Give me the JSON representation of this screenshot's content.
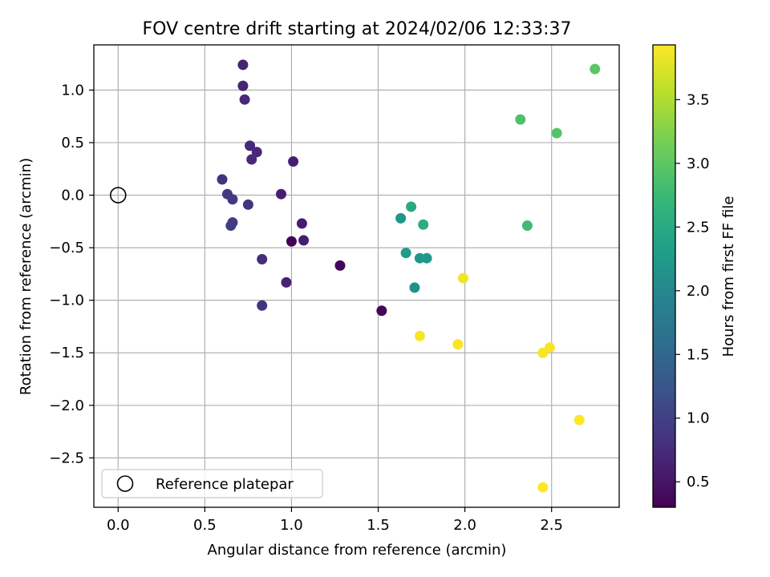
{
  "chart_data": {
    "type": "scatter",
    "title": "FOV centre drift starting at 2024/02/06 12:33:37",
    "xlabel": "Angular distance from reference (arcmin)",
    "ylabel": "Rotation from reference (arcmin)",
    "xlim": [
      -0.14,
      2.89
    ],
    "ylim": [
      -2.97,
      1.43
    ],
    "xticks": [
      "0.0",
      "0.5",
      "1.0",
      "1.5",
      "2.0",
      "2.5"
    ],
    "xtick_values": [
      0.0,
      0.5,
      1.0,
      1.5,
      2.0,
      2.5
    ],
    "yticks": [
      "1.0",
      "0.5",
      "0.0",
      "−0.5",
      "−1.0",
      "−1.5",
      "−2.0",
      "−2.5"
    ],
    "ytick_values": [
      1.0,
      0.5,
      0.0,
      -0.5,
      -1.0,
      -1.5,
      -2.0,
      -2.5
    ],
    "grid": true,
    "legend": {
      "position": "lower-left",
      "label": "Reference platepar"
    },
    "reference_point": {
      "x": 0.0,
      "y": 0.0
    },
    "colorbar": {
      "label": "Hours from first FF file",
      "colormap": "viridis",
      "range": [
        0.3,
        3.93
      ],
      "ticks": [
        "0.5",
        "1.0",
        "1.5",
        "2.0",
        "2.5",
        "3.0",
        "3.5"
      ],
      "tick_values": [
        0.5,
        1.0,
        1.5,
        2.0,
        2.5,
        3.0,
        3.5
      ]
    },
    "points": [
      {
        "x": 1.0,
        "y": -0.44,
        "hours": 0.3
      },
      {
        "x": 1.28,
        "y": -0.67,
        "hours": 0.35
      },
      {
        "x": 1.52,
        "y": -1.1,
        "hours": 0.35
      },
      {
        "x": 1.07,
        "y": -0.43,
        "hours": 0.6
      },
      {
        "x": 1.06,
        "y": -0.27,
        "hours": 0.6
      },
      {
        "x": 0.97,
        "y": -0.83,
        "hours": 0.65
      },
      {
        "x": 0.94,
        "y": 0.01,
        "hours": 0.6
      },
      {
        "x": 1.01,
        "y": 0.32,
        "hours": 0.6
      },
      {
        "x": 0.72,
        "y": 1.24,
        "hours": 0.65
      },
      {
        "x": 0.72,
        "y": 1.04,
        "hours": 0.65
      },
      {
        "x": 0.73,
        "y": 0.91,
        "hours": 0.7
      },
      {
        "x": 0.76,
        "y": 0.47,
        "hours": 0.7
      },
      {
        "x": 0.8,
        "y": 0.41,
        "hours": 0.7
      },
      {
        "x": 0.77,
        "y": 0.34,
        "hours": 0.7
      },
      {
        "x": 0.83,
        "y": -0.61,
        "hours": 0.75
      },
      {
        "x": 0.83,
        "y": -1.05,
        "hours": 0.85
      },
      {
        "x": 0.75,
        "y": -0.09,
        "hours": 0.85
      },
      {
        "x": 0.6,
        "y": 0.15,
        "hours": 0.85
      },
      {
        "x": 0.63,
        "y": 0.01,
        "hours": 0.9
      },
      {
        "x": 0.66,
        "y": -0.04,
        "hours": 0.9
      },
      {
        "x": 0.66,
        "y": -0.26,
        "hours": 0.95
      },
      {
        "x": 0.65,
        "y": -0.29,
        "hours": 0.95
      },
      {
        "x": 1.63,
        "y": -0.22,
        "hours": 2.2
      },
      {
        "x": 1.69,
        "y": -0.11,
        "hours": 2.5
      },
      {
        "x": 1.76,
        "y": -0.28,
        "hours": 2.55
      },
      {
        "x": 1.66,
        "y": -0.55,
        "hours": 2.3
      },
      {
        "x": 1.74,
        "y": -0.6,
        "hours": 2.2
      },
      {
        "x": 1.78,
        "y": -0.6,
        "hours": 2.25
      },
      {
        "x": 1.71,
        "y": -0.88,
        "hours": 2.15
      },
      {
        "x": 2.36,
        "y": -0.29,
        "hours": 2.8
      },
      {
        "x": 2.32,
        "y": 0.72,
        "hours": 2.9
      },
      {
        "x": 2.53,
        "y": 0.59,
        "hours": 2.95
      },
      {
        "x": 2.75,
        "y": 1.2,
        "hours": 3.0
      },
      {
        "x": 1.99,
        "y": -0.79,
        "hours": 3.85
      },
      {
        "x": 1.74,
        "y": -1.34,
        "hours": 3.9
      },
      {
        "x": 1.96,
        "y": -1.42,
        "hours": 3.9
      },
      {
        "x": 2.45,
        "y": -1.5,
        "hours": 3.9
      },
      {
        "x": 2.49,
        "y": -1.45,
        "hours": 3.9
      },
      {
        "x": 2.66,
        "y": -2.14,
        "hours": 3.93
      },
      {
        "x": 2.45,
        "y": -2.78,
        "hours": 3.93
      }
    ]
  }
}
